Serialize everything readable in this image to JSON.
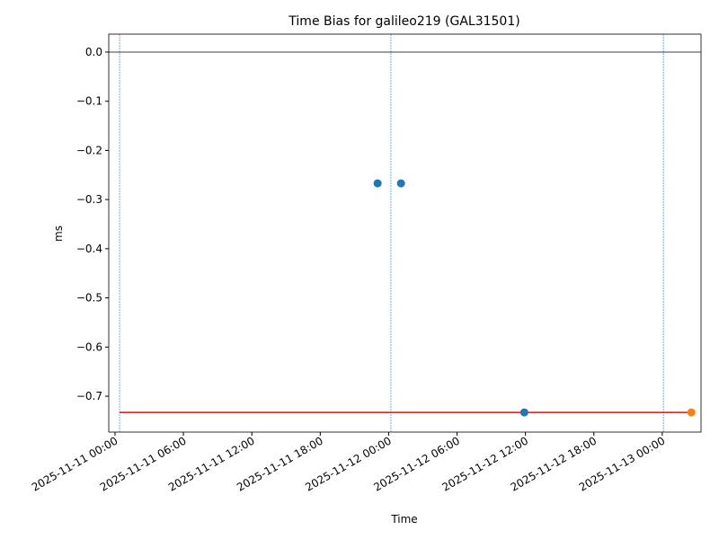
{
  "chart_data": {
    "type": "scatter",
    "title": "Time Bias for galileo219 (GAL31501)",
    "x_label": "Time",
    "y_label": "ms",
    "xlim": [
      "2025-11-10 23:27",
      "2025-11-13 03:24"
    ],
    "ylim": [
      -0.773,
      0.0365
    ],
    "xticks": [
      "2025-11-11 00:00",
      "2025-11-11 06:00",
      "2025-11-11 12:00",
      "2025-11-11 18:00",
      "2025-11-12 00:00",
      "2025-11-12 06:00",
      "2025-11-12 12:00",
      "2025-11-12 18:00",
      "2025-11-13 00:00"
    ],
    "yticks": [
      {
        "value": 0,
        "label": "0.0"
      },
      {
        "value": -0.1,
        "label": "−0.1"
      },
      {
        "value": -0.2,
        "label": "−0.2"
      },
      {
        "value": -0.3,
        "label": "−0.3"
      },
      {
        "value": -0.4,
        "label": "−0.4"
      },
      {
        "value": -0.5,
        "label": "−0.5"
      },
      {
        "value": -0.6,
        "label": "−0.6"
      },
      {
        "value": -0.7,
        "label": "−0.7"
      }
    ],
    "series": [
      {
        "color": "#1f77b4",
        "x": [
          "2025-11-11 23:02",
          "2025-11-12 01:05",
          "2025-11-12 11:54"
        ],
        "values": [
          -0.267,
          -0.267,
          -0.733
        ]
      },
      {
        "color": "#ff7f0e",
        "x": [
          "2025-11-13 02:33"
        ],
        "values": [
          -0.733
        ]
      }
    ],
    "vlines": {
      "color": "#1f77b4",
      "x": [
        "2025-11-11 00:24",
        "2025-11-12 00:12",
        "2025-11-13 00:06"
      ]
    },
    "hlines": [
      {
        "color": "#000000",
        "y": 0
      },
      {
        "color": "#ff0000",
        "y": -0.733,
        "xmin": "2025-11-11 00:24",
        "xmax": "2025-11-13 02:33"
      }
    ]
  }
}
